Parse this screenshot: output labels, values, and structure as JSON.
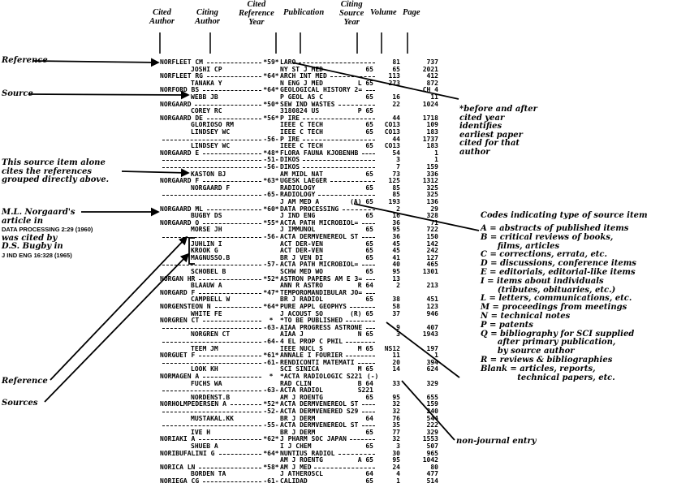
{
  "headers": {
    "cited_author": [
      "Cited",
      "Author"
    ],
    "citing_author": [
      "Citing",
      "Author"
    ],
    "cited_reference_year": [
      "Cited",
      "Reference",
      "Year"
    ],
    "publication": [
      "Publication"
    ],
    "citing_source_year": [
      "Citing",
      "Source",
      "Year"
    ],
    "volume": [
      "Volume"
    ],
    "page": [
      "Page"
    ]
  },
  "left_notes": {
    "reference_top": "Reference",
    "source": "Source",
    "grouped": [
      "This source item alone",
      "cites the references",
      "grouped directly above."
    ],
    "norgaard": [
      "M.L. Norgaard's",
      "article in",
      "DATA PROCESSING 2:29 (1960)",
      "was cited by",
      "D.S. Bugby in",
      "J IND ENG 16:328 (1965)"
    ],
    "reference_bottom": "Reference",
    "sources_bottom": "Sources"
  },
  "right_notes": {
    "before_after": [
      "*before and after",
      "cited year",
      "identifies",
      "earliest paper",
      "cited for that",
      "author"
    ],
    "codes_title": "Codes indicating type of source item",
    "codes": [
      "A = abstracts of published items",
      "B = critical reviews of books,",
      "      films, articles",
      "C = corrections, errata, etc.",
      "D = discussions, conference items",
      "E = editorials, editorial-like items",
      "I = items about individuals",
      "      (tributes, obituaries, etc.)",
      "L = letters, communications, etc.",
      "M = proceedings from meetings",
      "N = technical notes",
      "P = patents",
      "Q = bibliography for SCI supplied",
      "      after primary publication,",
      "      by source author",
      "R = reviews & bibliographies",
      "Blank = articles, reports,",
      "             technical papers, etc."
    ],
    "non_journal": "non-journal entry"
  },
  "rows": [
    {
      "cited": "NORFLEET CM",
      "citing": "",
      "year": "*59*",
      "pub": "LARO",
      "sy": "",
      "vol": "81",
      "page": "737"
    },
    {
      "cited": "",
      "citing": "JOSHI CP",
      "year": "",
      "pub": "NY ST J MED",
      "sy": "65",
      "vol": "65",
      "page": "2021"
    },
    {
      "cited": "NORFLEET RG",
      "citing": "",
      "year": "*64*",
      "pub": "ARCH INT MED",
      "sy": "",
      "vol": "113",
      "page": "412"
    },
    {
      "cited": "",
      "citing": "TANAKA Y",
      "year": "",
      "pub": "N ENG J MED",
      "sy": "L 65",
      "vol": "273",
      "page": "872"
    },
    {
      "cited": "NORFORD BS",
      "citing": "",
      "year": "*64*",
      "pub": "GEOLOGICAL HISTORY 2=",
      "sy": "",
      "vol": "",
      "page": "CH 4"
    },
    {
      "cited": "",
      "citing": "WEBB JB",
      "year": "",
      "pub": "P GEOL AS C",
      "sy": "65",
      "vol": "16",
      "page": "11"
    },
    {
      "cited": "NORGAARD",
      "citing": "",
      "year": "*50*",
      "pub": "SEW IND WASTES",
      "sy": "",
      "vol": "22",
      "page": "1024"
    },
    {
      "cited": "",
      "citing": "COREY RC",
      "year": "",
      "pub": "3180824 US",
      "sy": "P 65",
      "vol": "",
      "page": ""
    },
    {
      "cited": "NORGAARD DE",
      "citing": "",
      "year": "*56*",
      "pub": "P IRE",
      "sy": "",
      "vol": "44",
      "page": "1718"
    },
    {
      "cited": "",
      "citing": "GLORIOSO RM",
      "year": "",
      "pub": "IEEE C TECH",
      "sy": "65",
      "vol": "CO13",
      "page": "109"
    },
    {
      "cited": "",
      "citing": "LINDSEY WC",
      "year": "",
      "pub": "IEEE C TECH",
      "sy": "65",
      "vol": "CO13",
      "page": "183"
    },
    {
      "cited": "",
      "citing": "",
      "year": "-56-",
      "pub": "P IRE",
      "sy": "",
      "vol": "44",
      "page": "1737"
    },
    {
      "cited": "",
      "citing": "LINDSEY WC",
      "year": "",
      "pub": "IEEE C TECH",
      "sy": "65",
      "vol": "CO13",
      "page": "183"
    },
    {
      "cited": "NORGAARD E",
      "citing": "",
      "year": "*48*",
      "pub": "FLORA FAUNA KJOBENHB",
      "sy": "",
      "vol": "54",
      "page": "1"
    },
    {
      "cited": "",
      "citing": "",
      "year": "-51-",
      "pub": "DIKOS",
      "sy": "",
      "vol": "3",
      "page": "1"
    },
    {
      "cited": "",
      "citing": "",
      "year": "-56-",
      "pub": "DIKOS",
      "sy": "",
      "vol": "7",
      "page": "159"
    },
    {
      "cited": "",
      "citing": "KASTON BJ",
      "year": "",
      "pub": "AM MIDL NAT",
      "sy": "65",
      "vol": "73",
      "page": "336"
    },
    {
      "cited": "NORGAARD F",
      "citing": "",
      "year": "*63*",
      "pub": "UGESK LAEGER",
      "sy": "",
      "vol": "125",
      "page": "1312"
    },
    {
      "cited": "",
      "citing": "NORGAARD F",
      "year": "",
      "pub": "RADIOLOGY",
      "sy": "65",
      "vol": "85",
      "page": "325"
    },
    {
      "cited": "",
      "citing": "",
      "year": "-65-",
      "pub": "RADIOLOGY",
      "sy": "",
      "vol": "85",
      "page": "325"
    },
    {
      "cited": "",
      "citing": "",
      "year": "",
      "pub": "J AM MED A",
      "sy": "(A) 65",
      "vol": "193",
      "page": "136"
    },
    {
      "cited": "NORGAARD ML",
      "citing": "",
      "year": "*60*",
      "pub": "DATA PROCESSING",
      "sy": "",
      "vol": "2",
      "page": "29"
    },
    {
      "cited": "",
      "citing": "BUGBY DS",
      "year": "",
      "pub": "J IND ENG",
      "sy": "65",
      "vol": "16",
      "page": "328"
    },
    {
      "cited": "NORGAARD O",
      "citing": "",
      "year": "*55*",
      "pub": "ACTA PATH MICROBIOL=",
      "sy": "",
      "vol": "36",
      "page": "71"
    },
    {
      "cited": "",
      "citing": "MORSE JH",
      "year": "",
      "pub": "J IMMUNOL",
      "sy": "65",
      "vol": "95",
      "page": "722"
    },
    {
      "cited": "",
      "citing": "",
      "year": "-56-",
      "pub": "ACTA DERMVENEREOL ST",
      "sy": "",
      "vol": "36",
      "page": "150"
    },
    {
      "cited": "",
      "citing": "JUHLIN I",
      "year": "",
      "pub": "ACT DER-VEN",
      "sy": "65",
      "vol": "45",
      "page": "142"
    },
    {
      "cited": "",
      "citing": "KROOK G",
      "year": "",
      "pub": "ACT DER-VEN",
      "sy": "65",
      "vol": "45",
      "page": "242"
    },
    {
      "cited": "",
      "citing": "MAGNUSSO.B",
      "year": "",
      "pub": "BR J VEN DI",
      "sy": "65",
      "vol": "41",
      "page": "127"
    },
    {
      "cited": "",
      "citing": "",
      "year": "-57-",
      "pub": "ACTA PATH MICROBIOL=",
      "sy": "",
      "vol": "40",
      "page": "465"
    },
    {
      "cited": "",
      "citing": "SCHOBEL B",
      "year": "",
      "pub": "SCHW MED WO",
      "sy": "65",
      "vol": "95",
      "page": "1301"
    },
    {
      "cited": "NORGAN HR",
      "citing": "",
      "year": "*52*",
      "pub": "ASTRON PAPERS AM E 3=",
      "sy": "",
      "vol": "13",
      "page": ""
    },
    {
      "cited": "",
      "citing": "BLAAUW A",
      "year": "",
      "pub": "ANN R ASTRO",
      "sy": "R 64",
      "vol": "2",
      "page": "213"
    },
    {
      "cited": "NORGARD F",
      "citing": "",
      "year": "*47*",
      "pub": "TEMPOROMANDIBULAR JO=",
      "sy": "",
      "vol": "",
      "page": ""
    },
    {
      "cited": "",
      "citing": "CAMPBELL W",
      "year": "",
      "pub": "BR J RADIOL",
      "sy": "65",
      "vol": "38",
      "page": "451"
    },
    {
      "cited": "NORGENSTEON N",
      "citing": "",
      "year": "*64*",
      "pub": "PURE APPL GEOPHYS",
      "sy": "",
      "vol": "58",
      "page": "123"
    },
    {
      "cited": "",
      "citing": "WHITE FE",
      "year": "",
      "pub": "J ACOUST SO",
      "sy": "(R) 65",
      "vol": "37",
      "page": "946"
    },
    {
      "cited": "NORGREN CT",
      "citing": "",
      "year": "*",
      "pub": "*TO BE PUBLISHED",
      "sy": "",
      "vol": "",
      "page": ""
    },
    {
      "cited": "",
      "citing": "",
      "year": "-63-",
      "pub": "AIAA PROGRESS ASTRONE",
      "sy": "",
      "vol": "9",
      "page": "407"
    },
    {
      "cited": "",
      "citing": "NORGREN CT",
      "year": "",
      "pub": "AIAA J",
      "sy": "N 65",
      "vol": "3",
      "page": "1943"
    },
    {
      "cited": "",
      "citing": "",
      "year": "-64-",
      "pub": "4 EL PROP C PHIL",
      "sy": "",
      "vol": "",
      "page": ""
    },
    {
      "cited": "",
      "citing": "TEEM JM",
      "year": "",
      "pub": "IEEE NUCL S",
      "sy": "M 65",
      "vol": "NS12",
      "page": "197"
    },
    {
      "cited": "NORGUET F",
      "citing": "",
      "year": "*61*",
      "pub": "ANNALE I FOURIER",
      "sy": "",
      "vol": "11",
      "page": "1"
    },
    {
      "cited": "",
      "citing": "",
      "year": "-61-",
      "pub": "RENDICONTI MATEMATI",
      "sy": "",
      "vol": "20",
      "page": "394"
    },
    {
      "cited": "",
      "citing": "LOOK KH",
      "year": "",
      "pub": "SCI SINICA",
      "sy": "M 65",
      "vol": "14",
      "page": "624"
    },
    {
      "cited": "NORMAGEN A",
      "citing": "",
      "year": "*",
      "pub": "*ACTA RADIOLOGIC S221",
      "sy": "(-)",
      "vol": "",
      "page": ""
    },
    {
      "cited": "",
      "citing": "FUCHS WA",
      "year": "",
      "pub": "RAD CLIN",
      "sy": "B 64",
      "vol": "33",
      "page": "329"
    },
    {
      "cited": "",
      "citing": "",
      "year": "-63-",
      "pub": "ACTA RADIOL",
      "sy": "S221",
      "vol": "",
      "page": ""
    },
    {
      "cited": "",
      "citing": "NORDENST.B",
      "year": "",
      "pub": "AM J ROENTG",
      "sy": "65",
      "vol": "95",
      "page": "655"
    },
    {
      "cited": "NORHOLMPEDERSEN A",
      "citing": "",
      "year": "*52*",
      "pub": "ACTA DERMVENEREOL ST",
      "sy": "",
      "vol": "32",
      "page": "159"
    },
    {
      "cited": "",
      "citing": "",
      "year": "-52-",
      "pub": "ACTA DERMVENERED S29",
      "sy": "",
      "vol": "32",
      "page": "240"
    },
    {
      "cited": "",
      "citing": "MUSTAKAL.KK",
      "year": "",
      "pub": "BR J DERM",
      "sy": "64",
      "vol": "76",
      "page": "544"
    },
    {
      "cited": "",
      "citing": "",
      "year": "-55-",
      "pub": "ACTA DERMVENEREOL ST",
      "sy": "",
      "vol": "35",
      "page": "222"
    },
    {
      "cited": "",
      "citing": "IVE H",
      "year": "",
      "pub": "BR J DERM",
      "sy": "65",
      "vol": "77",
      "page": "329"
    },
    {
      "cited": "NORIAKI A",
      "citing": "",
      "year": "*62*",
      "pub": "J PHARM SOC JAPAN",
      "sy": "",
      "vol": "32",
      "page": "1553"
    },
    {
      "cited": "",
      "citing": "SHUEB A",
      "year": "",
      "pub": "I J CHEM",
      "sy": "65",
      "vol": "3",
      "page": "507"
    },
    {
      "cited": "NORIBUFALINI G",
      "citing": "",
      "year": "*64*",
      "pub": "NUNTIUS RADIOL",
      "sy": "",
      "vol": "30",
      "page": "965"
    },
    {
      "cited": "",
      "citing": "",
      "year": "",
      "pub": "AM J ROENTG",
      "sy": "A 65",
      "vol": "95",
      "page": "1042"
    },
    {
      "cited": "NORICA LN",
      "citing": "",
      "year": "*58*",
      "pub": "AM J MED",
      "sy": "",
      "vol": "24",
      "page": "80"
    },
    {
      "cited": "",
      "citing": "BORDEN TA",
      "year": "",
      "pub": "J ATHEROSCL",
      "sy": "64",
      "vol": "4",
      "page": "477"
    },
    {
      "cited": "NORIEGA CG",
      "citing": "",
      "year": "-61-",
      "pub": "CALIDAD",
      "sy": "65",
      "vol": "1",
      "page": "514"
    }
  ]
}
